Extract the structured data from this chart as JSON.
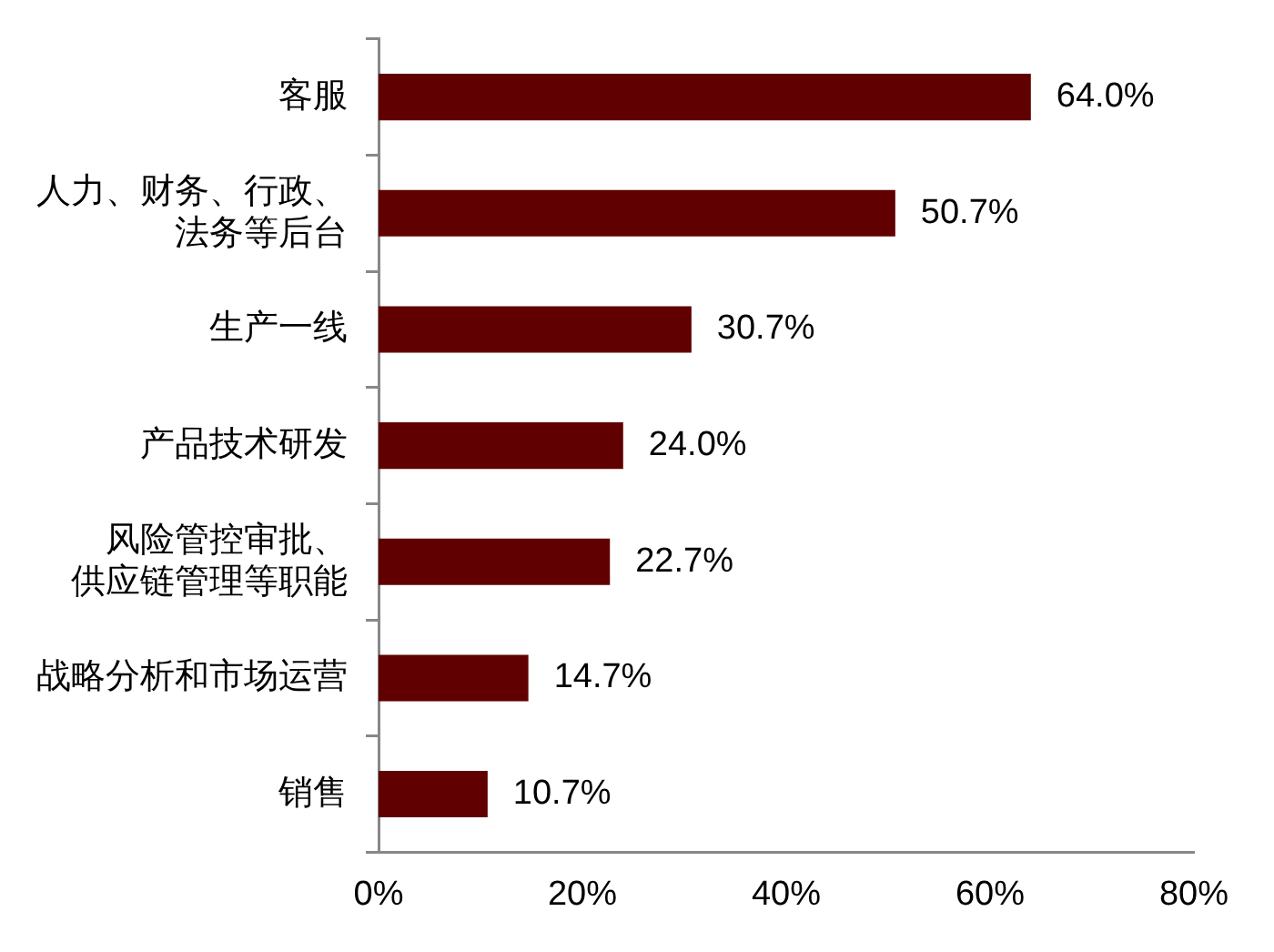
{
  "chart_data": {
    "type": "bar",
    "orientation": "horizontal",
    "categories": [
      "客服",
      "人力、财务、行政、法务等后台",
      "生产一线",
      "产品技术研发",
      "风险管控审批、供应链管理等职能",
      "战略分析和市场运营",
      "销售"
    ],
    "values": [
      64.0,
      50.7,
      30.7,
      24.0,
      22.7,
      14.7,
      10.7
    ],
    "value_labels": [
      "64.0%",
      "50.7%",
      "30.7%",
      "24.0%",
      "22.7%",
      "14.7%",
      "10.7%"
    ],
    "color": "#600000",
    "xlim": [
      0,
      80
    ],
    "xticks": [
      {
        "value": 0,
        "label": "0%"
      },
      {
        "value": 20,
        "label": "20%"
      },
      {
        "value": 40,
        "label": "40%"
      },
      {
        "value": 60,
        "label": "60%"
      },
      {
        "value": 80,
        "label": "80%"
      }
    ],
    "grid": false,
    "legend": false
  }
}
